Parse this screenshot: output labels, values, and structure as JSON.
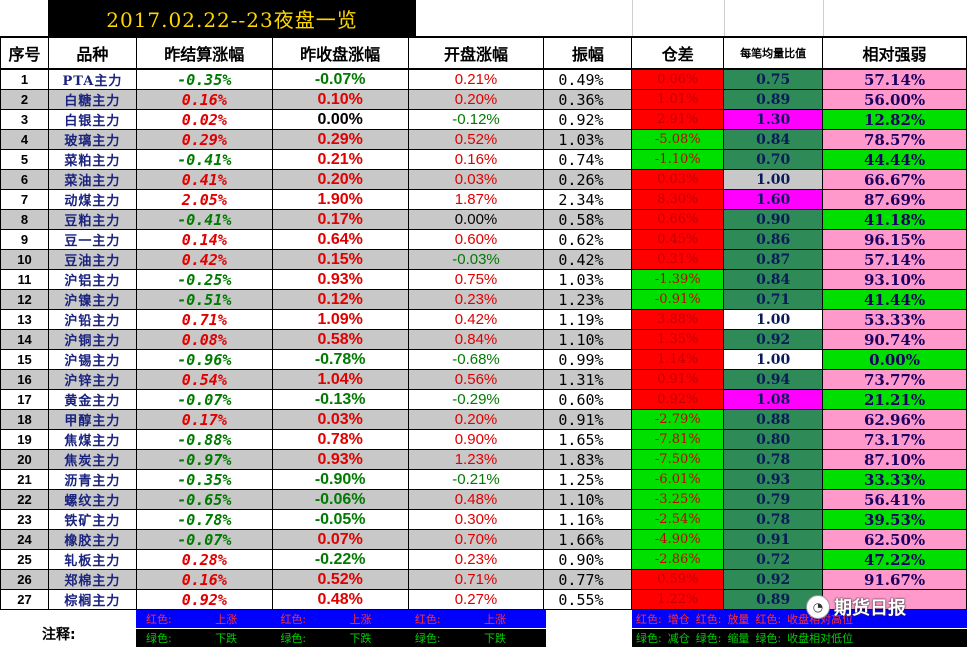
{
  "title": "2017.02.22--23夜盘一览",
  "headers": [
    "序号",
    "品种",
    "昨结算涨幅",
    "昨收盘涨幅",
    "开盘涨幅",
    "振幅",
    "仓差",
    "每笔均量比值",
    "相对强弱"
  ],
  "colors": {
    "red": "#e00000",
    "green": "#007a00",
    "black": "#000000",
    "oi_red": "#ff0000",
    "oi_green": "#00e000",
    "ratio_dark": "#2e8b57",
    "ratio_magenta": "#ff00ff",
    "ratio_white": "#ffffff",
    "ratio_gray": "#c8c8c8",
    "strength_pink": "#ff99cc",
    "strength_green": "#00e000",
    "row_gray": "#c8c8c8"
  },
  "rows": [
    {
      "idx": "1",
      "name": "PTA主力",
      "settle": "-0.35%",
      "settle_c": "green",
      "close": "-0.07%",
      "close_c": "green",
      "open": "0.21%",
      "open_c": "red",
      "amp": "0.49%",
      "oi": "0.06%",
      "oi_bg": "oi_red",
      "ratio": "0.75",
      "ratio_bg": "ratio_dark",
      "strength": "57.14%",
      "strength_bg": "strength_pink"
    },
    {
      "idx": "2",
      "name": "白糖主力",
      "settle": "0.16%",
      "settle_c": "red",
      "close": "0.10%",
      "close_c": "red",
      "open": "0.20%",
      "open_c": "red",
      "amp": "0.36%",
      "oi": "1.01%",
      "oi_bg": "oi_red",
      "ratio": "0.89",
      "ratio_bg": "ratio_dark",
      "strength": "56.00%",
      "strength_bg": "strength_pink"
    },
    {
      "idx": "3",
      "name": "白银主力",
      "settle": "0.02%",
      "settle_c": "red",
      "close": "0.00%",
      "close_c": "black",
      "open": "-0.12%",
      "open_c": "green",
      "amp": "0.92%",
      "oi": "2.91%",
      "oi_bg": "oi_red",
      "ratio": "1.30",
      "ratio_bg": "ratio_magenta",
      "strength": "12.82%",
      "strength_bg": "strength_green"
    },
    {
      "idx": "4",
      "name": "玻璃主力",
      "settle": "0.29%",
      "settle_c": "red",
      "close": "0.29%",
      "close_c": "red",
      "open": "0.52%",
      "open_c": "red",
      "amp": "1.03%",
      "oi": "-5.08%",
      "oi_bg": "oi_green",
      "ratio": "0.84",
      "ratio_bg": "ratio_dark",
      "strength": "78.57%",
      "strength_bg": "strength_pink"
    },
    {
      "idx": "5",
      "name": "菜粕主力",
      "settle": "-0.41%",
      "settle_c": "green",
      "close": "0.21%",
      "close_c": "red",
      "open": "0.16%",
      "open_c": "red",
      "amp": "0.74%",
      "oi": "-1.10%",
      "oi_bg": "oi_green",
      "ratio": "0.70",
      "ratio_bg": "ratio_dark",
      "strength": "44.44%",
      "strength_bg": "strength_green"
    },
    {
      "idx": "6",
      "name": "菜油主力",
      "settle": "0.41%",
      "settle_c": "red",
      "close": "0.20%",
      "close_c": "red",
      "open": "0.03%",
      "open_c": "red",
      "amp": "0.26%",
      "oi": "0.03%",
      "oi_bg": "oi_red",
      "ratio": "1.00",
      "ratio_bg": "ratio_gray",
      "strength": "66.67%",
      "strength_bg": "strength_pink"
    },
    {
      "idx": "7",
      "name": "动煤主力",
      "settle": "2.05%",
      "settle_c": "red",
      "close": "1.90%",
      "close_c": "red",
      "open": "1.87%",
      "open_c": "red",
      "amp": "2.34%",
      "oi": "8.30%",
      "oi_bg": "oi_red",
      "ratio": "1.60",
      "ratio_bg": "ratio_magenta",
      "strength": "87.69%",
      "strength_bg": "strength_pink"
    },
    {
      "idx": "8",
      "name": "豆粕主力",
      "settle": "-0.41%",
      "settle_c": "green",
      "close": "0.17%",
      "close_c": "red",
      "open": "0.00%",
      "open_c": "black",
      "amp": "0.58%",
      "oi": "0.66%",
      "oi_bg": "oi_red",
      "ratio": "0.90",
      "ratio_bg": "ratio_dark",
      "strength": "41.18%",
      "strength_bg": "strength_green"
    },
    {
      "idx": "9",
      "name": "豆一主力",
      "settle": "0.14%",
      "settle_c": "red",
      "close": "0.64%",
      "close_c": "red",
      "open": "0.60%",
      "open_c": "red",
      "amp": "0.62%",
      "oi": "0.45%",
      "oi_bg": "oi_red",
      "ratio": "0.86",
      "ratio_bg": "ratio_dark",
      "strength": "96.15%",
      "strength_bg": "strength_pink"
    },
    {
      "idx": "10",
      "name": "豆油主力",
      "settle": "0.42%",
      "settle_c": "red",
      "close": "0.15%",
      "close_c": "red",
      "open": "-0.03%",
      "open_c": "green",
      "amp": "0.42%",
      "oi": "0.31%",
      "oi_bg": "oi_red",
      "ratio": "0.87",
      "ratio_bg": "ratio_dark",
      "strength": "57.14%",
      "strength_bg": "strength_pink"
    },
    {
      "idx": "11",
      "name": "沪铝主力",
      "settle": "-0.25%",
      "settle_c": "green",
      "close": "0.93%",
      "close_c": "red",
      "open": "0.75%",
      "open_c": "red",
      "amp": "1.03%",
      "oi": "-1.39%",
      "oi_bg": "oi_green",
      "ratio": "0.84",
      "ratio_bg": "ratio_dark",
      "strength": "93.10%",
      "strength_bg": "strength_pink"
    },
    {
      "idx": "12",
      "name": "沪镍主力",
      "settle": "-0.51%",
      "settle_c": "green",
      "close": "0.12%",
      "close_c": "red",
      "open": "0.23%",
      "open_c": "red",
      "amp": "1.23%",
      "oi": "-0.91%",
      "oi_bg": "oi_green",
      "ratio": "0.71",
      "ratio_bg": "ratio_dark",
      "strength": "41.44%",
      "strength_bg": "strength_green"
    },
    {
      "idx": "13",
      "name": "沪铅主力",
      "settle": "0.71%",
      "settle_c": "red",
      "close": "1.09%",
      "close_c": "red",
      "open": "0.42%",
      "open_c": "red",
      "amp": "1.19%",
      "oi": "3.88%",
      "oi_bg": "oi_red",
      "ratio": "1.00",
      "ratio_bg": "ratio_white",
      "strength": "53.33%",
      "strength_bg": "strength_pink"
    },
    {
      "idx": "14",
      "name": "沪铜主力",
      "settle": "0.08%",
      "settle_c": "red",
      "close": "0.58%",
      "close_c": "red",
      "open": "0.84%",
      "open_c": "red",
      "amp": "1.10%",
      "oi": "1.35%",
      "oi_bg": "oi_red",
      "ratio": "0.92",
      "ratio_bg": "ratio_dark",
      "strength": "90.74%",
      "strength_bg": "strength_pink"
    },
    {
      "idx": "15",
      "name": "沪锡主力",
      "settle": "-0.96%",
      "settle_c": "green",
      "close": "-0.78%",
      "close_c": "green",
      "open": "-0.68%",
      "open_c": "green",
      "amp": "0.99%",
      "oi": "1.14%",
      "oi_bg": "oi_red",
      "ratio": "1.00",
      "ratio_bg": "ratio_white",
      "strength": "0.00%",
      "strength_bg": "strength_green"
    },
    {
      "idx": "16",
      "name": "沪锌主力",
      "settle": "0.54%",
      "settle_c": "red",
      "close": "1.04%",
      "close_c": "red",
      "open": "0.56%",
      "open_c": "red",
      "amp": "1.31%",
      "oi": "0.91%",
      "oi_bg": "oi_red",
      "ratio": "0.94",
      "ratio_bg": "ratio_dark",
      "strength": "73.77%",
      "strength_bg": "strength_pink"
    },
    {
      "idx": "17",
      "name": "黄金主力",
      "settle": "-0.07%",
      "settle_c": "green",
      "close": "-0.13%",
      "close_c": "green",
      "open": "-0.29%",
      "open_c": "green",
      "amp": "0.60%",
      "oi": "0.92%",
      "oi_bg": "oi_red",
      "ratio": "1.08",
      "ratio_bg": "ratio_magenta",
      "strength": "21.21%",
      "strength_bg": "strength_green"
    },
    {
      "idx": "18",
      "name": "甲醇主力",
      "settle": "0.17%",
      "settle_c": "red",
      "close": "0.03%",
      "close_c": "red",
      "open": "0.20%",
      "open_c": "red",
      "amp": "0.91%",
      "oi": "-2.79%",
      "oi_bg": "oi_green",
      "ratio": "0.88",
      "ratio_bg": "ratio_dark",
      "strength": "62.96%",
      "strength_bg": "strength_pink"
    },
    {
      "idx": "19",
      "name": "焦煤主力",
      "settle": "-0.88%",
      "settle_c": "green",
      "close": "0.78%",
      "close_c": "red",
      "open": "0.90%",
      "open_c": "red",
      "amp": "1.65%",
      "oi": "-7.81%",
      "oi_bg": "oi_green",
      "ratio": "0.80",
      "ratio_bg": "ratio_dark",
      "strength": "73.17%",
      "strength_bg": "strength_pink"
    },
    {
      "idx": "20",
      "name": "焦炭主力",
      "settle": "-0.97%",
      "settle_c": "green",
      "close": "0.93%",
      "close_c": "red",
      "open": "1.23%",
      "open_c": "red",
      "amp": "1.83%",
      "oi": "-7.50%",
      "oi_bg": "oi_green",
      "ratio": "0.78",
      "ratio_bg": "ratio_dark",
      "strength": "87.10%",
      "strength_bg": "strength_pink"
    },
    {
      "idx": "21",
      "name": "沥青主力",
      "settle": "-0.35%",
      "settle_c": "green",
      "close": "-0.90%",
      "close_c": "green",
      "open": "-0.21%",
      "open_c": "green",
      "amp": "1.25%",
      "oi": "-6.01%",
      "oi_bg": "oi_green",
      "ratio": "0.93",
      "ratio_bg": "ratio_dark",
      "strength": "33.33%",
      "strength_bg": "strength_green"
    },
    {
      "idx": "22",
      "name": "螺纹主力",
      "settle": "-0.65%",
      "settle_c": "green",
      "close": "-0.06%",
      "close_c": "green",
      "open": "0.48%",
      "open_c": "red",
      "amp": "1.10%",
      "oi": "-3.25%",
      "oi_bg": "oi_green",
      "ratio": "0.79",
      "ratio_bg": "ratio_dark",
      "strength": "56.41%",
      "strength_bg": "strength_pink"
    },
    {
      "idx": "23",
      "name": "铁矿主力",
      "settle": "-0.78%",
      "settle_c": "green",
      "close": "-0.05%",
      "close_c": "green",
      "open": "0.30%",
      "open_c": "red",
      "amp": "1.16%",
      "oi": "-2.54%",
      "oi_bg": "oi_green",
      "ratio": "0.78",
      "ratio_bg": "ratio_dark",
      "strength": "39.53%",
      "strength_bg": "strength_green"
    },
    {
      "idx": "24",
      "name": "橡胶主力",
      "settle": "-0.07%",
      "settle_c": "green",
      "close": "0.07%",
      "close_c": "red",
      "open": "0.70%",
      "open_c": "red",
      "amp": "1.66%",
      "oi": "-4.90%",
      "oi_bg": "oi_green",
      "ratio": "0.91",
      "ratio_bg": "ratio_dark",
      "strength": "62.50%",
      "strength_bg": "strength_pink"
    },
    {
      "idx": "25",
      "name": "轧板主力",
      "settle": "0.28%",
      "settle_c": "red",
      "close": "-0.22%",
      "close_c": "green",
      "open": "0.23%",
      "open_c": "red",
      "amp": "0.90%",
      "oi": "-2.86%",
      "oi_bg": "oi_green",
      "ratio": "0.72",
      "ratio_bg": "ratio_dark",
      "strength": "47.22%",
      "strength_bg": "strength_green"
    },
    {
      "idx": "26",
      "name": "郑棉主力",
      "settle": "0.16%",
      "settle_c": "red",
      "close": "0.52%",
      "close_c": "red",
      "open": "0.71%",
      "open_c": "red",
      "amp": "0.77%",
      "oi": "0.59%",
      "oi_bg": "oi_red",
      "ratio": "0.92",
      "ratio_bg": "ratio_dark",
      "strength": "91.67%",
      "strength_bg": "strength_pink"
    },
    {
      "idx": "27",
      "name": "棕榈主力",
      "settle": "0.92%",
      "settle_c": "red",
      "close": "0.48%",
      "close_c": "red",
      "open": "0.27%",
      "open_c": "red",
      "amp": "0.55%",
      "oi": "1.22%",
      "oi_bg": "oi_red",
      "ratio": "0.89",
      "ratio_bg": "ratio_dark",
      "strength": "",
      "strength_bg": "strength_pink"
    }
  ],
  "notes": {
    "label": "注释:",
    "price": {
      "red_key": "红色:",
      "red_val": "上涨",
      "green_key": "绿色:",
      "green_val": "下跌"
    },
    "oi": {
      "red_key": "红色:",
      "red_val": "增仓",
      "green_key": "绿色:",
      "green_val": "减仓"
    },
    "ratio": {
      "red_key": "红色:",
      "red_val": "放量",
      "green_key": "绿色:",
      "green_val": "缩量"
    },
    "strength": {
      "red_key": "红色:",
      "red_val": "收盘相对高位",
      "green_key": "绿色:",
      "green_val": "收盘相对低位"
    }
  },
  "watermark": "期货日报"
}
